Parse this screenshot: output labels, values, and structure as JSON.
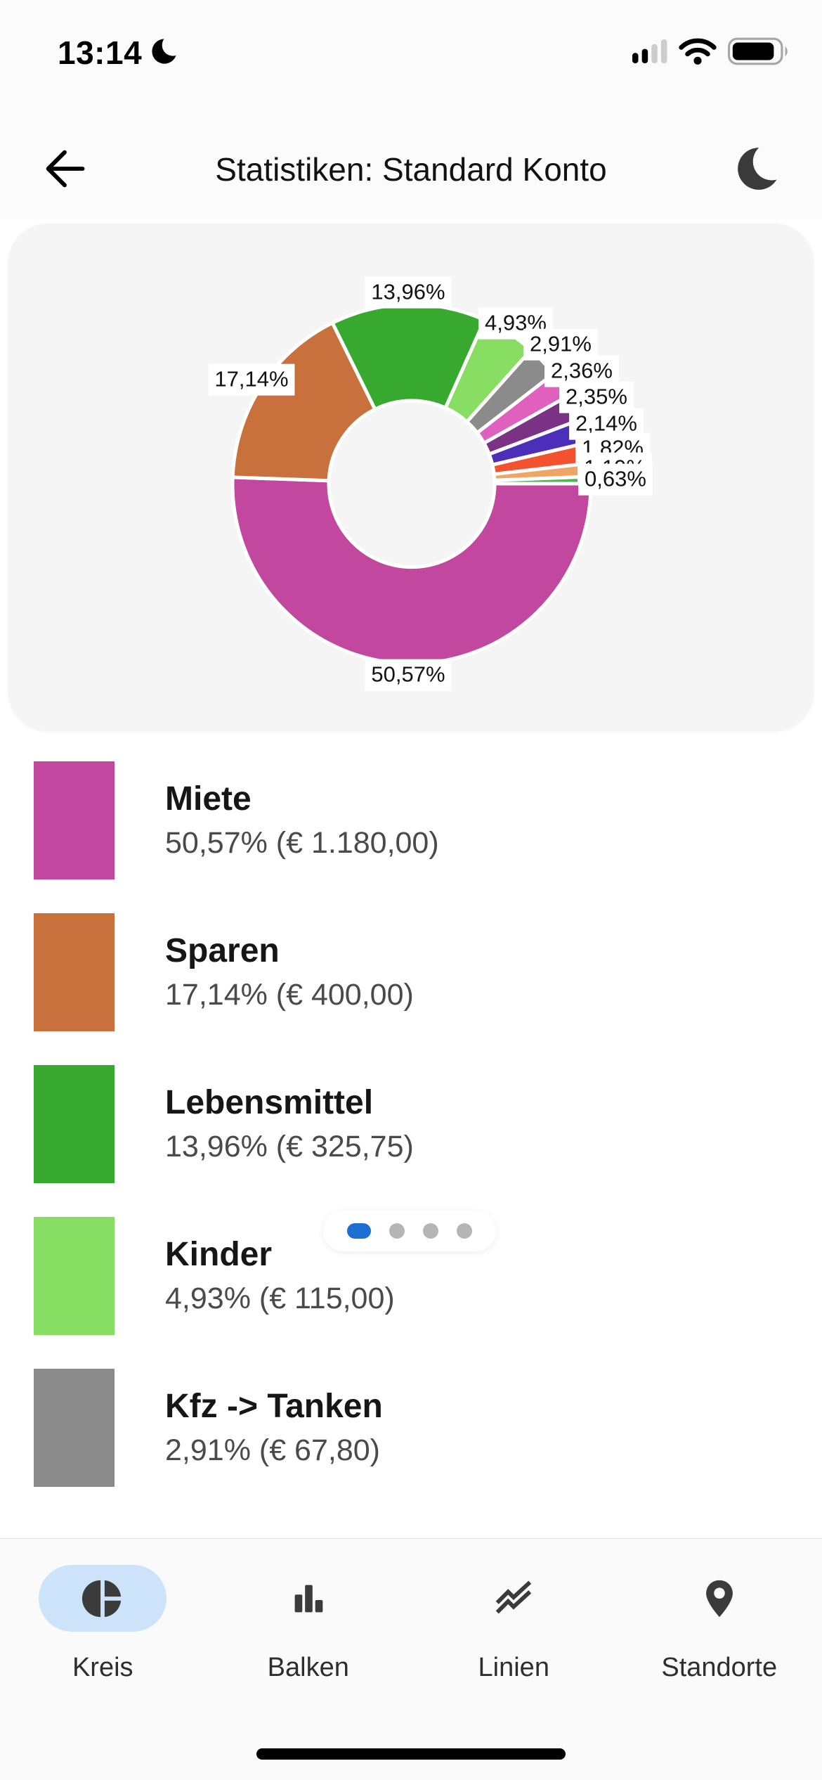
{
  "status_bar": {
    "time": "13:14"
  },
  "header": {
    "title": "Statistiken: Standard Konto"
  },
  "chart_data": {
    "type": "pie",
    "style": "donut",
    "start_angle_deg": 0,
    "direction": "clockwise",
    "legend_position": "bottom-list",
    "slices": [
      {
        "name": "Miete",
        "pct": 50.57,
        "pct_label": "50,57%",
        "amount_label": "€ 1.180,00",
        "color": "#C2479E"
      },
      {
        "name": "Sparen",
        "pct": 17.14,
        "pct_label": "17,14%",
        "amount_label": "€ 400,00",
        "color": "#C8713C"
      },
      {
        "name": "Lebensmittel",
        "pct": 13.96,
        "pct_label": "13,96%",
        "amount_label": "€ 325,75",
        "color": "#38A92F"
      },
      {
        "name": "Kinder",
        "pct": 4.93,
        "pct_label": "4,93%",
        "amount_label": "€ 115,00",
        "color": "#87DE62"
      },
      {
        "name": "Kfz -> Tanken",
        "pct": 2.91,
        "pct_label": "2,91%",
        "amount_label": "€ 67,80",
        "color": "#8B8B8B"
      },
      {
        "name": "",
        "pct": 2.36,
        "pct_label": "2,36%",
        "color": "#E060BE"
      },
      {
        "name": "",
        "pct": 2.35,
        "pct_label": "2,35%",
        "color": "#7B3284"
      },
      {
        "name": "",
        "pct": 2.14,
        "pct_label": "2,14%",
        "color": "#4B2EB9"
      },
      {
        "name": "",
        "pct": 1.82,
        "pct_label": "1,82%",
        "color": "#F2522E"
      },
      {
        "name": "",
        "pct": 1.19,
        "pct_label": "1,19%",
        "color": "#EEA565"
      },
      {
        "name": "",
        "pct": 0.63,
        "pct_label": "0,63%",
        "color": "#54B257"
      }
    ]
  },
  "legend": {
    "items": [
      {
        "name": "Miete",
        "subtitle": "50,57% (€ 1.180,00)",
        "color": "#C2479E"
      },
      {
        "name": "Sparen",
        "subtitle": "17,14% (€ 400,00)",
        "color": "#C8713C"
      },
      {
        "name": "Lebensmittel",
        "subtitle": "13,96% (€ 325,75)",
        "color": "#38A92F"
      },
      {
        "name": "Kinder",
        "subtitle": "4,93% (€ 115,00)",
        "color": "#87DE62"
      },
      {
        "name": "Kfz -> Tanken",
        "subtitle": "2,91% (€ 67,80)",
        "color": "#8B8B8B"
      }
    ]
  },
  "pager": {
    "count": 4,
    "active_index": 0,
    "active_color": "#1E6FD3",
    "inactive_color": "#B5B5B5"
  },
  "tab_bar": {
    "active_bg": "#CDE3F9",
    "tabs": [
      {
        "label": "Kreis",
        "icon": "pie-chart-icon",
        "active": true
      },
      {
        "label": "Balken",
        "icon": "bar-chart-icon",
        "active": false
      },
      {
        "label": "Linien",
        "icon": "line-chart-icon",
        "active": false
      },
      {
        "label": "Standorte",
        "icon": "map-pin-icon",
        "active": false
      }
    ]
  }
}
